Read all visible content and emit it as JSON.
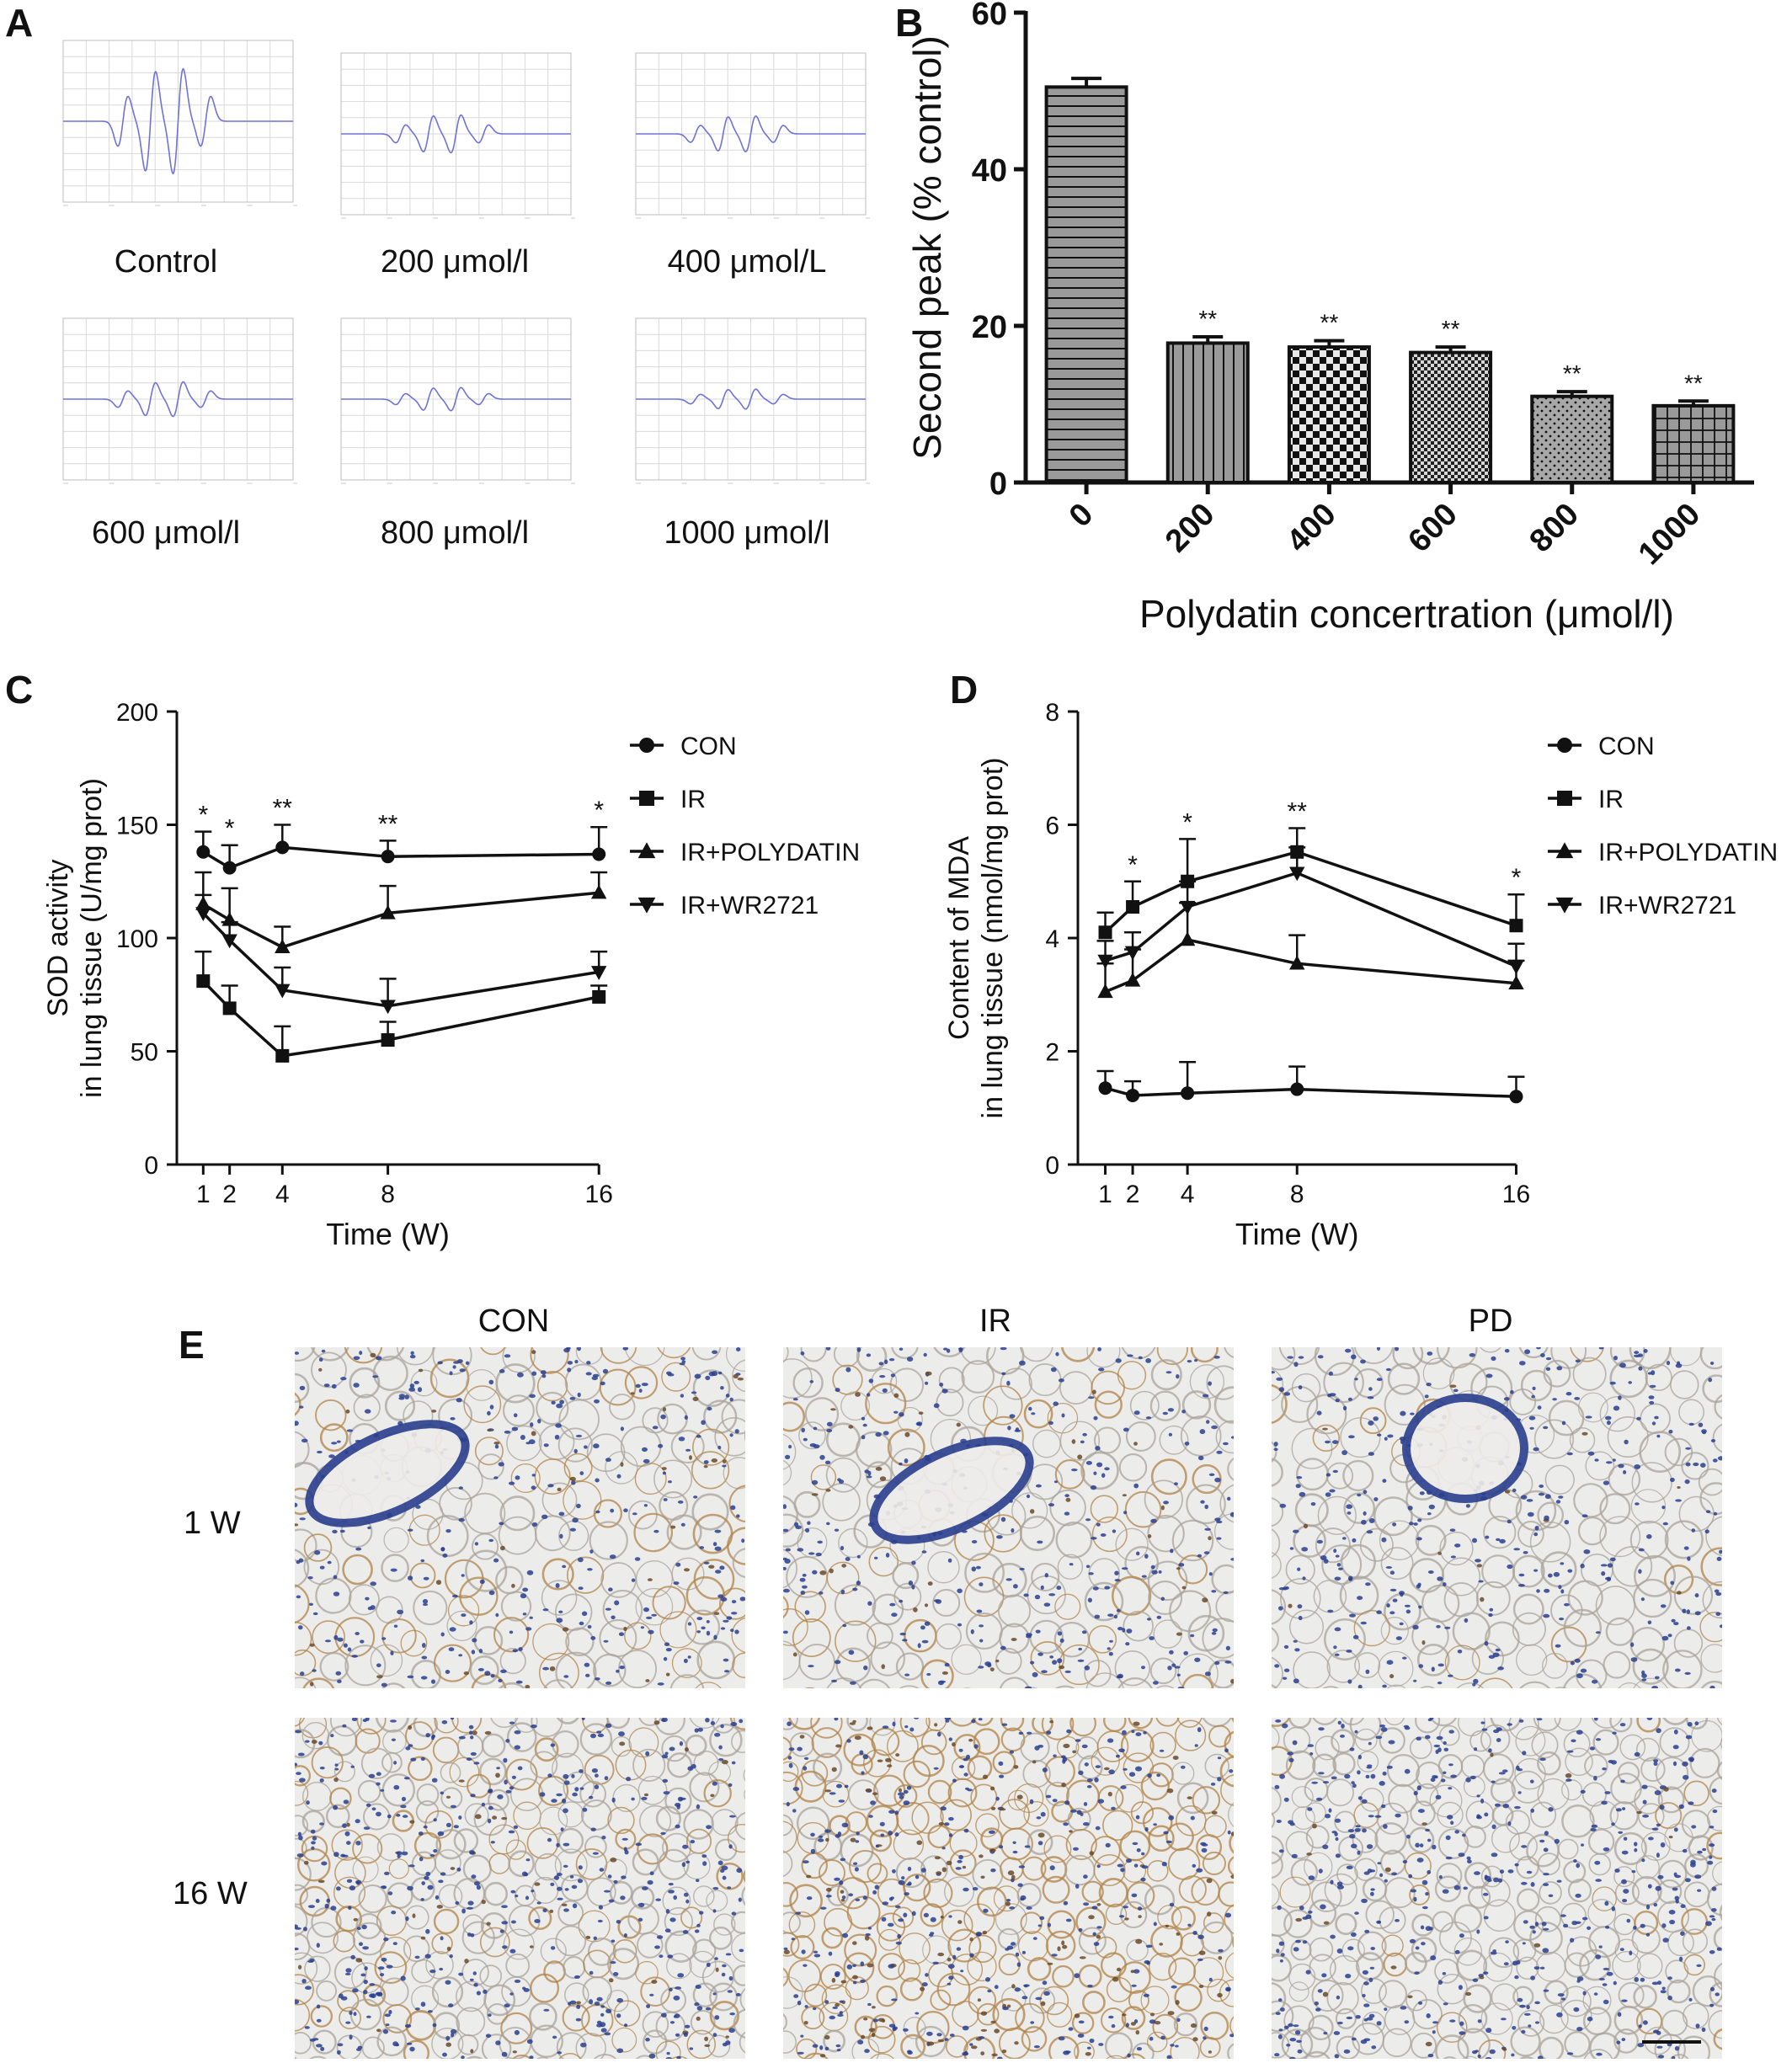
{
  "panel_labels": {
    "a": "A",
    "b": "B",
    "c": "C",
    "d": "D",
    "e": "E"
  },
  "panel_a": {
    "spectra": [
      {
        "label": "Control",
        "amplitude": 1.0
      },
      {
        "label": "200 μmol/l",
        "amplitude": 0.36
      },
      {
        "label": "400 μmol/L",
        "amplitude": 0.34
      },
      {
        "label": "600 μmol/l",
        "amplitude": 0.33
      },
      {
        "label": "800 μmol/l",
        "amplitude": 0.22
      },
      {
        "label": "1000 μmol/l",
        "amplitude": 0.19
      }
    ],
    "trace_color": "#6f72d8"
  },
  "chart_data": [
    {
      "type": "bar",
      "panel": "B",
      "categories": [
        "0",
        "200",
        "400",
        "600",
        "800",
        "1000"
      ],
      "values": [
        50.5,
        17.8,
        17.3,
        16.6,
        11.0,
        9.8
      ],
      "errors": [
        1.1,
        0.8,
        0.8,
        0.7,
        0.6,
        0.6
      ],
      "significance": [
        "",
        "**",
        "**",
        "**",
        "**",
        "**"
      ],
      "xlabel": "Polydatin concertration (μmol/l)",
      "ylabel": "Second peak (% control)",
      "ylim": [
        0,
        60
      ],
      "yticks": [
        0,
        20,
        40,
        60
      ],
      "bar_fill": "#9a9a9a",
      "patterns": [
        "horizontal-lines",
        "vertical-lines",
        "checker-large",
        "checker-small",
        "dots",
        "grid"
      ]
    },
    {
      "type": "line",
      "panel": "C",
      "x": [
        1,
        2,
        4,
        8,
        16
      ],
      "xticks": [
        "1",
        "2",
        "4",
        "8",
        "16"
      ],
      "series": [
        {
          "name": "CON",
          "marker": "circle",
          "values": [
            138,
            131,
            140,
            136,
            137
          ],
          "errors": [
            9,
            10,
            10,
            7,
            12
          ]
        },
        {
          "name": "IR",
          "marker": "square",
          "values": [
            81,
            69,
            48,
            55,
            74
          ],
          "errors": [
            13,
            10,
            13,
            8,
            5
          ]
        },
        {
          "name": "IR+POLYDATIN",
          "marker": "triangle-up",
          "values": [
            115,
            108,
            96,
            111,
            120
          ],
          "errors": [
            14,
            14,
            9,
            12,
            9
          ]
        },
        {
          "name": "IR+WR2721",
          "marker": "triangle-down",
          "values": [
            111,
            99,
            77,
            70,
            85
          ],
          "errors": [
            8,
            8,
            10,
            12,
            9
          ]
        }
      ],
      "significance": [
        {
          "x": 1,
          "label": "*"
        },
        {
          "x": 2,
          "label": "*"
        },
        {
          "x": 4,
          "label": "**"
        },
        {
          "x": 8,
          "label": "**"
        },
        {
          "x": 16,
          "label": "*"
        }
      ],
      "xlabel": "Time (W)",
      "ylabel_line1": "SOD activity",
      "ylabel_line2": "in lung tissue (U/mg prot)",
      "ylim": [
        0,
        200
      ],
      "yticks": [
        0,
        50,
        100,
        150,
        200
      ],
      "legend_position": "right"
    },
    {
      "type": "line",
      "panel": "D",
      "x": [
        1,
        2,
        4,
        8,
        16
      ],
      "xticks": [
        "1",
        "2",
        "4",
        "8",
        "16"
      ],
      "series": [
        {
          "name": "CON",
          "marker": "circle",
          "values": [
            1.35,
            1.22,
            1.26,
            1.33,
            1.2
          ],
          "errors": [
            0.3,
            0.25,
            0.55,
            0.4,
            0.35
          ]
        },
        {
          "name": "IR",
          "marker": "square",
          "values": [
            4.1,
            4.55,
            5.0,
            5.52,
            4.22
          ],
          "errors": [
            0.35,
            0.45,
            0.75,
            0.42,
            0.55
          ]
        },
        {
          "name": "IR+POLYDATIN",
          "marker": "triangle-up",
          "values": [
            3.05,
            3.25,
            3.97,
            3.55,
            3.2
          ],
          "errors": [
            0.5,
            0.55,
            0.65,
            0.5,
            0.4
          ]
        },
        {
          "name": "IR+WR2721",
          "marker": "triangle-down",
          "values": [
            3.6,
            3.75,
            4.55,
            5.15,
            3.5
          ],
          "errors": [
            0.35,
            0.35,
            0.45,
            0.45,
            0.4
          ]
        }
      ],
      "significance": [
        {
          "x": 2,
          "label": "*"
        },
        {
          "x": 4,
          "label": "*"
        },
        {
          "x": 8,
          "label": "**"
        },
        {
          "x": 16,
          "label": "*"
        }
      ],
      "xlabel": "Time (W)",
      "ylabel_line1": "Content of MDA",
      "ylabel_line2": "in lung tissue (nmol/mg prot)",
      "ylim": [
        0,
        8
      ],
      "yticks": [
        0,
        2,
        4,
        6,
        8
      ],
      "legend_position": "right"
    }
  ],
  "panel_e": {
    "columns": [
      "CON",
      "IR",
      "PD"
    ],
    "rows": [
      "1 W",
      "16 W"
    ],
    "stain_levels": [
      [
        0.35,
        0.25,
        0.08
      ],
      [
        0.3,
        0.8,
        0.08
      ]
    ],
    "background_color": "#ececea",
    "nucleus_color": "#2a3f8f",
    "stain_color": "#b08348"
  }
}
